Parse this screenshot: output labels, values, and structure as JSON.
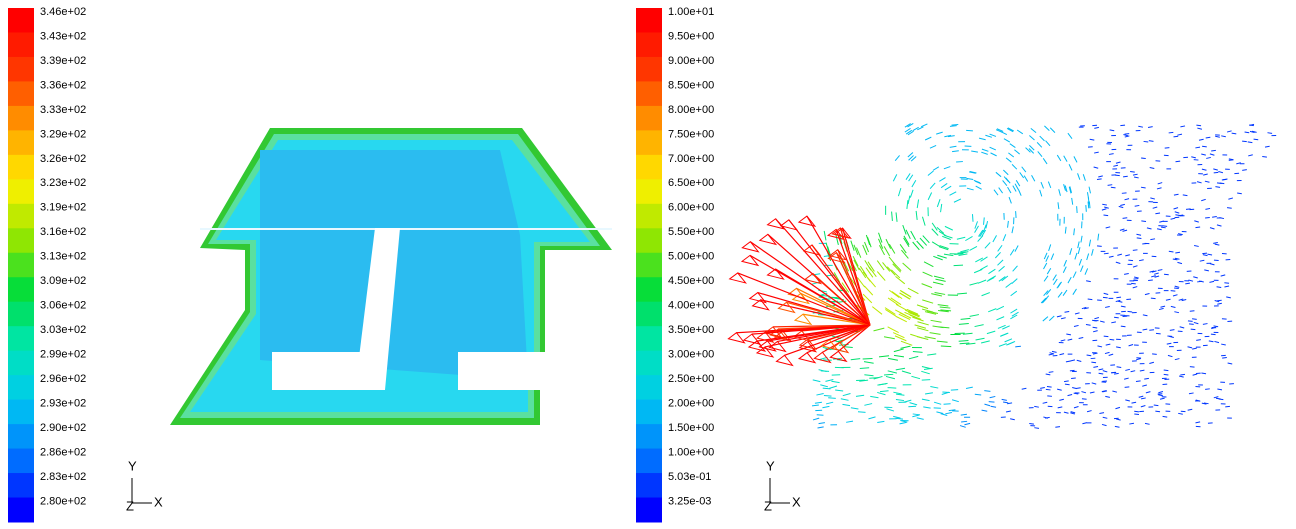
{
  "panels": [
    {
      "legend_labels": [
        "3.46e+02",
        "3.43e+02",
        "3.39e+02",
        "3.36e+02",
        "3.33e+02",
        "3.29e+02",
        "3.26e+02",
        "3.23e+02",
        "3.19e+02",
        "3.16e+02",
        "3.13e+02",
        "3.09e+02",
        "3.06e+02",
        "3.03e+02",
        "2.99e+02",
        "2.96e+02",
        "2.93e+02",
        "2.90e+02",
        "2.86e+02",
        "2.83e+02",
        "2.80e+02"
      ],
      "axes": {
        "y": "Y",
        "z": "Z",
        "x": "X"
      }
    },
    {
      "legend_labels": [
        "1.00e+01",
        "9.50e+00",
        "9.00e+00",
        "8.50e+00",
        "8.00e+00",
        "7.50e+00",
        "7.00e+00",
        "6.50e+00",
        "6.00e+00",
        "5.50e+00",
        "5.00e+00",
        "4.50e+00",
        "4.00e+00",
        "3.50e+00",
        "3.00e+00",
        "2.50e+00",
        "2.00e+00",
        "1.50e+00",
        "1.00e+00",
        "5.03e-01",
        "3.25e-03"
      ],
      "axes": {
        "y": "Y",
        "z": "Z",
        "x": "X"
      }
    }
  ]
}
